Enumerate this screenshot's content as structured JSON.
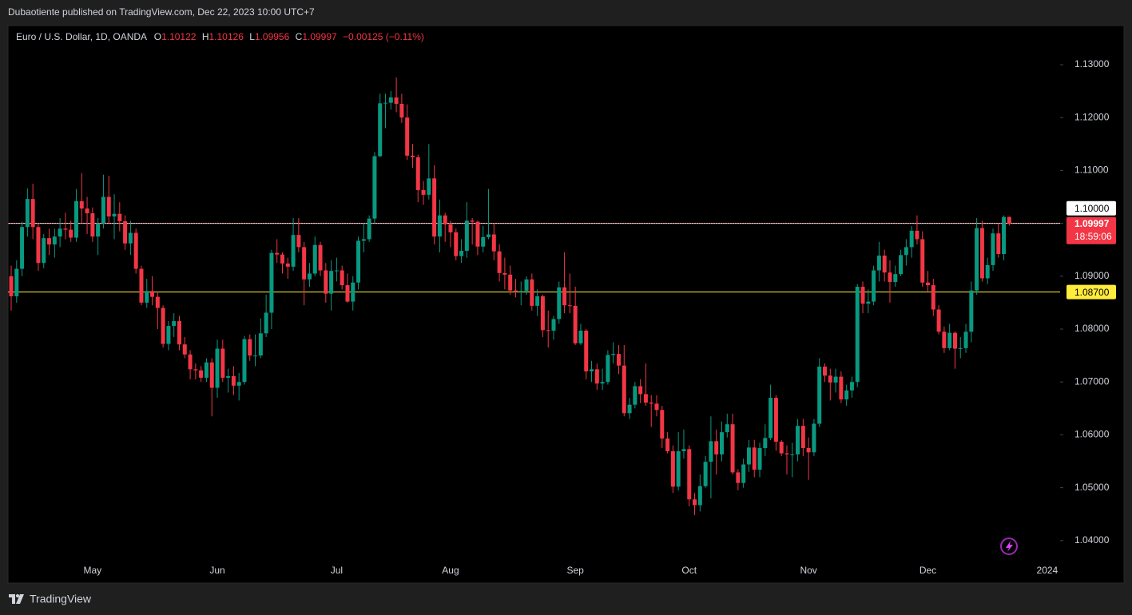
{
  "header": "Dubaotiente published on TradingView.com, Dec 22, 2023 10:00 UTC+7",
  "brand": "TradingView",
  "chart_data": {
    "type": "candlestick",
    "title": "Euro / U.S. Dollar, 1D, OANDA",
    "ohlc_labels": [
      "O",
      "H",
      "L",
      "C"
    ],
    "change": "−0.00125 (−0.11%)",
    "countdown": "18:59:06",
    "up_color": "#089981",
    "down_color": "#f23645",
    "grid": false,
    "ylim": [
      1.0362,
      1.1374
    ],
    "yticks": [
      {
        "value": 1.04,
        "label": "1.04000"
      },
      {
        "value": 1.05,
        "label": "1.05000"
      },
      {
        "value": 1.06,
        "label": "1.06000"
      },
      {
        "value": 1.07,
        "label": "1.07000"
      },
      {
        "value": 1.08,
        "label": "1.08000"
      },
      {
        "value": 1.09,
        "label": "1.09000"
      },
      {
        "value": 1.1,
        "label": "1.10000"
      },
      {
        "value": 1.11,
        "label": "1.11000"
      },
      {
        "value": 1.12,
        "label": "1.12000"
      },
      {
        "value": 1.13,
        "label": "1.13000"
      }
    ],
    "hlines": [
      {
        "value": 1.1,
        "label": "1.10000",
        "color": "#ffffff"
      },
      {
        "value": 1.087,
        "label": "1.08700",
        "color": "#ffeb3b"
      }
    ],
    "categories": [
      null,
      null,
      null,
      null,
      null,
      null,
      null,
      null,
      null,
      null,
      null,
      null,
      null,
      null,
      null,
      "May",
      null,
      null,
      null,
      null,
      null,
      null,
      null,
      null,
      null,
      null,
      null,
      null,
      null,
      null,
      null,
      null,
      null,
      null,
      null,
      null,
      null,
      null,
      "Jun",
      null,
      null,
      null,
      null,
      null,
      null,
      null,
      null,
      null,
      null,
      null,
      null,
      null,
      null,
      null,
      null,
      null,
      null,
      null,
      null,
      null,
      "Jul",
      null,
      null,
      null,
      null,
      null,
      null,
      null,
      null,
      null,
      null,
      null,
      null,
      null,
      null,
      null,
      null,
      null,
      null,
      null,
      null,
      "Aug",
      null,
      null,
      null,
      null,
      null,
      null,
      null,
      null,
      null,
      null,
      null,
      null,
      null,
      null,
      null,
      null,
      null,
      null,
      null,
      null,
      null,
      null,
      "Sep",
      null,
      null,
      null,
      null,
      null,
      null,
      null,
      null,
      null,
      null,
      null,
      null,
      null,
      null,
      null,
      null,
      null,
      null,
      null,
      null,
      "Oct",
      null,
      null,
      null,
      null,
      null,
      null,
      null,
      null,
      null,
      null,
      null,
      null,
      null,
      null,
      null,
      null,
      null,
      null,
      null,
      null,
      null,
      "Nov",
      null,
      null,
      null,
      null,
      null,
      null,
      null,
      null,
      null,
      null,
      null,
      null,
      null,
      null,
      null,
      null,
      null,
      null,
      null,
      null,
      null,
      "Dec",
      null,
      null,
      null,
      null,
      null,
      null,
      null,
      null,
      null,
      null,
      null,
      null,
      null,
      null,
      null,
      null,
      null,
      null,
      null,
      null,
      null,
      "2024"
    ],
    "open": [
      1.09,
      1.0862,
      1.0914,
      1.0993,
      1.1046,
      1.0993,
      1.0925,
      1.0972,
      1.096,
      1.0975,
      1.099,
      1.0988,
      1.0973,
      1.1042,
      1.1028,
      1.1019,
      1.0975,
      1.1,
      1.105,
      1.1013,
      1.1018,
      1.1004,
      1.0962,
      1.0982,
      1.0914,
      1.085,
      1.0872,
      1.0861,
      1.084,
      1.0772,
      1.0806,
      1.0815,
      1.0771,
      1.0752,
      1.0724,
      1.0722,
      1.0708,
      1.0737,
      1.0689,
      1.0763,
      1.0708,
      1.0711,
      1.0693,
      1.07,
      1.0781,
      1.075,
      1.075,
      1.0792,
      1.0831,
      1.0944,
      1.0941,
      1.0924,
      1.0918,
      1.0978,
      1.0955,
      1.0894,
      1.0905,
      1.0959,
      1.0911,
      1.0867,
      1.091,
      1.0911,
      1.0883,
      1.0852,
      1.0888,
      1.0967,
      1.097,
      1.1009,
      1.1127,
      1.1227,
      1.1228,
      1.1238,
      1.1226,
      1.12,
      1.1128,
      1.1125,
      1.1063,
      1.1054,
      1.1085,
      1.0975,
      1.1015,
      1.0998,
      1.0983,
      1.0938,
      1.0948,
      1.1005,
      1.1003,
      1.0956,
      1.0974,
      1.0979,
      1.0947,
      1.0906,
      1.0903,
      1.0873,
      1.087,
      1.0872,
      1.0894,
      1.0844,
      1.0862,
      1.0798,
      1.0797,
      1.0819,
      1.0879,
      1.0845,
      1.0844,
      1.0773,
      1.0797,
      1.072,
      1.0724,
      1.0697,
      1.07,
      1.0751,
      1.0753,
      1.0731,
      1.0641,
      1.0657,
      1.0692,
      1.0677,
      1.0661,
      1.0659,
      1.0647,
      1.0593,
      1.0569,
      1.0502,
      1.0569,
      1.0573,
      1.0478,
      1.0467,
      1.0503,
      1.0549,
      1.0588,
      1.0563,
      1.0605,
      1.062,
      1.0529,
      1.0509,
      1.0544,
      1.0576,
      1.0534,
      1.0575,
      1.0594,
      1.067,
      1.0587,
      1.0565,
      1.0563,
      1.0563,
      1.0617,
      1.0575,
      1.0567,
      1.0621,
      1.0729,
      1.0712,
      1.0699,
      1.071,
      1.0667,
      1.0684,
      1.07,
      1.088,
      1.0848,
      1.0852,
      1.0911,
      1.0939,
      1.0907,
      1.0889,
      1.0904,
      1.094,
      1.0955,
      1.0986,
      1.097,
      1.0888,
      1.0883,
      1.0837,
      1.0795,
      1.0764,
      1.0793,
      1.0763,
      1.0764,
      1.0795,
      1.0873,
      1.0991,
      1.0896,
      1.0921,
      1.0981,
      1.0942,
      1.10122,
      null,
      null,
      null,
      null,
      null,
      null,
      null
    ],
    "high": [
      1.092,
      1.093,
      1.1003,
      1.1066,
      1.1075,
      1.1,
      1.098,
      1.099,
      1.099,
      1.101,
      1.102,
      1.1005,
      1.1065,
      1.1095,
      1.105,
      1.103,
      1.101,
      1.1092,
      1.109,
      1.1055,
      1.104,
      1.1015,
      1.1005,
      1.099,
      1.092,
      1.0895,
      1.09,
      1.087,
      1.0845,
      1.0815,
      1.083,
      1.0825,
      1.0785,
      1.076,
      1.0735,
      1.073,
      1.0745,
      1.0745,
      1.078,
      1.078,
      1.0725,
      1.073,
      1.0717,
      1.0787,
      1.079,
      1.079,
      1.082,
      1.0865,
      1.095,
      1.097,
      1.0945,
      1.0935,
      1.101,
      1.101,
      1.0965,
      1.0925,
      1.0975,
      1.0965,
      1.0925,
      1.093,
      1.0935,
      1.092,
      1.0905,
      1.09,
      1.0975,
      1.1,
      1.1015,
      1.1135,
      1.1245,
      1.1245,
      1.125,
      1.1276,
      1.1245,
      1.1225,
      1.115,
      1.113,
      1.108,
      1.115,
      1.111,
      1.1045,
      1.102,
      1.1005,
      1.099,
      1.097,
      1.104,
      1.101,
      1.1005,
      1.0995,
      1.1065,
      1.1,
      1.096,
      1.0935,
      1.092,
      1.0895,
      1.089,
      1.09,
      1.0905,
      1.0875,
      1.0865,
      1.0835,
      1.0825,
      1.089,
      1.0945,
      1.0905,
      1.088,
      1.081,
      1.08,
      1.074,
      1.0735,
      1.0725,
      1.076,
      1.0775,
      1.077,
      1.077,
      1.067,
      1.07,
      1.0705,
      1.0735,
      1.0675,
      1.0675,
      1.0655,
      1.0605,
      1.058,
      1.0605,
      1.061,
      1.058,
      1.049,
      1.0525,
      1.056,
      1.0635,
      1.061,
      1.0625,
      1.064,
      1.064,
      1.0535,
      1.0555,
      1.059,
      1.059,
      1.0585,
      1.062,
      1.0695,
      1.0675,
      1.059,
      1.058,
      1.0585,
      1.063,
      1.063,
      1.0595,
      1.063,
      1.0745,
      1.0735,
      1.0725,
      1.0725,
      1.072,
      1.0695,
      1.071,
      1.0885,
      1.089,
      1.0875,
      1.092,
      1.0965,
      1.095,
      1.093,
      1.092,
      1.095,
      1.097,
      1.0995,
      1.1015,
      1.0985,
      1.091,
      1.0895,
      1.0845,
      1.0805,
      1.081,
      1.0795,
      1.0785,
      1.081,
      1.089,
      1.101,
      1.1005,
      1.0935,
      1.099,
      1.1,
      1.1015,
      1.10126,
      null,
      null,
      null,
      null,
      null,
      null,
      null
    ],
    "low": [
      1.0835,
      1.085,
      1.09,
      1.0975,
      1.097,
      1.091,
      1.0915,
      1.094,
      1.0935,
      1.0955,
      1.097,
      1.0965,
      1.0965,
      1.1,
      1.098,
      1.0965,
      1.094,
      1.099,
      1.1,
      1.097,
      1.0985,
      1.095,
      1.094,
      1.0905,
      1.0845,
      1.084,
      1.0845,
      1.08,
      1.0765,
      1.076,
      1.0785,
      1.076,
      1.0745,
      1.0705,
      1.0705,
      1.07,
      1.07,
      1.0635,
      1.067,
      1.07,
      1.068,
      1.0675,
      1.0665,
      1.0695,
      1.074,
      1.073,
      1.0745,
      1.0785,
      1.08,
      1.0925,
      1.0905,
      1.0895,
      1.091,
      1.0945,
      1.0845,
      1.088,
      1.09,
      1.09,
      1.085,
      1.0835,
      1.089,
      1.0875,
      1.085,
      1.0835,
      1.0875,
      1.0945,
      1.0965,
      1.1,
      1.1125,
      1.118,
      1.1215,
      1.121,
      1.119,
      1.112,
      1.1105,
      1.104,
      1.1035,
      1.1045,
      1.096,
      1.0945,
      1.0965,
      1.0955,
      1.093,
      1.0925,
      1.0935,
      1.096,
      1.094,
      1.0945,
      1.097,
      1.093,
      1.089,
      1.0875,
      1.0865,
      1.086,
      1.0845,
      1.0865,
      1.0835,
      1.0825,
      1.0785,
      1.0765,
      1.078,
      1.081,
      1.083,
      1.083,
      1.077,
      1.077,
      1.0705,
      1.07,
      1.0685,
      1.0685,
      1.0695,
      1.0735,
      1.0715,
      1.0635,
      1.063,
      1.065,
      1.066,
      1.0655,
      1.0615,
      1.0635,
      1.0575,
      1.0565,
      1.049,
      1.0495,
      1.0555,
      1.0465,
      1.0448,
      1.0455,
      1.05,
      1.048,
      1.0525,
      1.055,
      1.0595,
      1.0525,
      1.0495,
      1.05,
      1.053,
      1.052,
      1.052,
      1.056,
      1.059,
      1.057,
      1.056,
      1.0525,
      1.052,
      1.055,
      1.056,
      1.0515,
      1.056,
      1.0615,
      1.07,
      1.0665,
      1.068,
      1.066,
      1.0655,
      1.067,
      1.069,
      1.083,
      1.083,
      1.0845,
      1.089,
      1.089,
      1.085,
      1.088,
      1.09,
      1.092,
      1.0935,
      1.096,
      1.088,
      1.087,
      1.0825,
      1.079,
      1.0755,
      1.076,
      1.0725,
      1.0745,
      1.0755,
      1.0775,
      1.0865,
      1.089,
      1.0885,
      1.091,
      1.0935,
      1.093,
      1.09956,
      null,
      null,
      null,
      null,
      null,
      null,
      null
    ],
    "close": [
      1.0862,
      1.0914,
      1.0993,
      1.1046,
      1.0993,
      1.0925,
      1.0972,
      1.096,
      1.0975,
      1.099,
      1.0988,
      1.0973,
      1.1042,
      1.1028,
      1.1019,
      1.0975,
      1.1,
      1.105,
      1.1013,
      1.1018,
      1.1004,
      1.0962,
      1.0982,
      1.0914,
      1.085,
      1.0872,
      1.0861,
      1.084,
      1.0772,
      1.0806,
      1.0815,
      1.0771,
      1.0752,
      1.0724,
      1.0722,
      1.0708,
      1.0737,
      1.0689,
      1.0763,
      1.0708,
      1.0711,
      1.0693,
      1.07,
      1.0781,
      1.075,
      1.075,
      1.0792,
      1.0831,
      1.0944,
      1.0941,
      1.0924,
      1.0918,
      1.0978,
      1.0955,
      1.0894,
      1.0905,
      1.0959,
      1.0911,
      1.0867,
      1.091,
      1.0911,
      1.0883,
      1.0852,
      1.0888,
      1.0967,
      1.097,
      1.1009,
      1.1127,
      1.1227,
      1.1228,
      1.1238,
      1.1226,
      1.12,
      1.1128,
      1.1125,
      1.1063,
      1.1054,
      1.1085,
      1.0975,
      1.1015,
      1.0998,
      1.0983,
      1.0938,
      1.0948,
      1.1005,
      1.1003,
      1.0956,
      1.0974,
      1.0979,
      1.0947,
      1.0906,
      1.0903,
      1.0873,
      1.087,
      1.0872,
      1.0894,
      1.0844,
      1.0862,
      1.0798,
      1.0797,
      1.0819,
      1.0879,
      1.0845,
      1.0844,
      1.0773,
      1.0797,
      1.072,
      1.0724,
      1.0697,
      1.07,
      1.0751,
      1.0753,
      1.0731,
      1.0641,
      1.0657,
      1.0692,
      1.0677,
      1.0661,
      1.0659,
      1.0647,
      1.0593,
      1.0569,
      1.0502,
      1.0569,
      1.0573,
      1.0478,
      1.0467,
      1.0503,
      1.0549,
      1.0588,
      1.0563,
      1.0605,
      1.062,
      1.0529,
      1.0509,
      1.0544,
      1.0576,
      1.0534,
      1.0575,
      1.0594,
      1.067,
      1.0587,
      1.0565,
      1.0563,
      1.0563,
      1.0617,
      1.0575,
      1.0567,
      1.0621,
      1.0729,
      1.0712,
      1.0699,
      1.071,
      1.0667,
      1.0684,
      1.07,
      1.088,
      1.0848,
      1.0852,
      1.0911,
      1.0939,
      1.0907,
      1.0889,
      1.0904,
      1.094,
      1.0955,
      1.0986,
      1.097,
      1.0888,
      1.0883,
      1.0837,
      1.0795,
      1.0764,
      1.0793,
      1.0763,
      1.0764,
      1.0795,
      1.0873,
      1.0991,
      1.0896,
      1.0921,
      1.0981,
      1.0942,
      1.1012,
      1.09997,
      null,
      null,
      null,
      null,
      null,
      null,
      null
    ]
  }
}
